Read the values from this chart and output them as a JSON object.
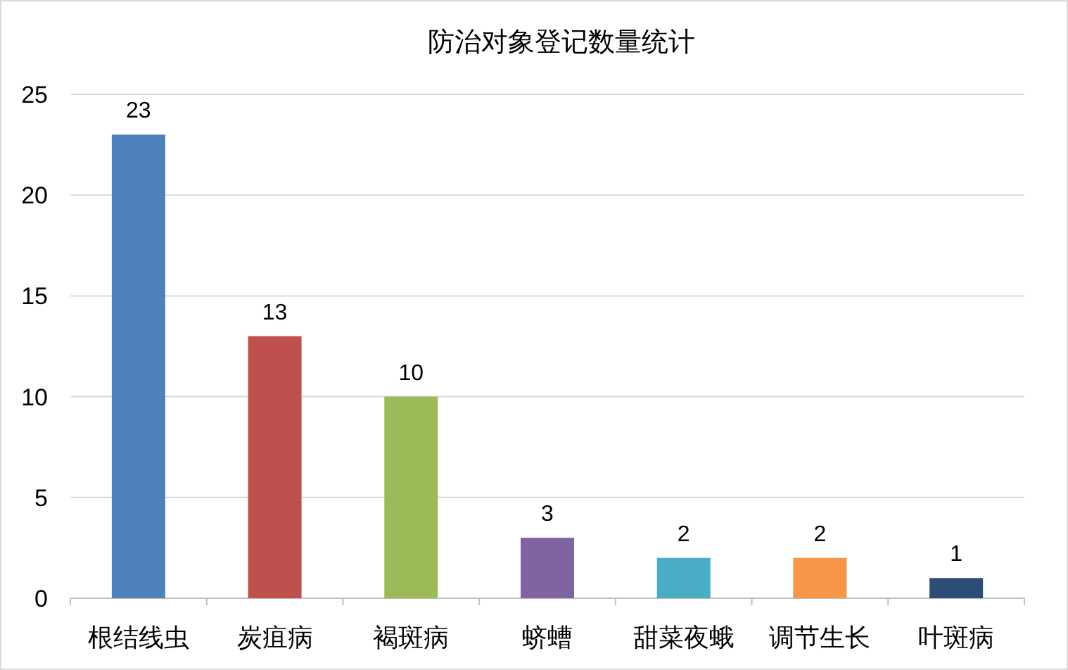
{
  "chart_data": {
    "type": "bar",
    "title": "防治对象登记数量统计",
    "categories": [
      "根结线虫",
      "炭疽病",
      "褐斑病",
      "蛴螬",
      "甜菜夜蛾",
      "调节生长",
      "叶斑病"
    ],
    "values": [
      23,
      13,
      10,
      3,
      2,
      2,
      1
    ],
    "colors": [
      "#4f81bd",
      "#c0504d",
      "#9bbb59",
      "#8064a2",
      "#4bacc6",
      "#f79646",
      "#2c4d75"
    ],
    "ylim": [
      0,
      25
    ],
    "yticks": [
      0,
      5,
      10,
      15,
      20,
      25
    ],
    "grid": "y",
    "data_labels": true
  }
}
